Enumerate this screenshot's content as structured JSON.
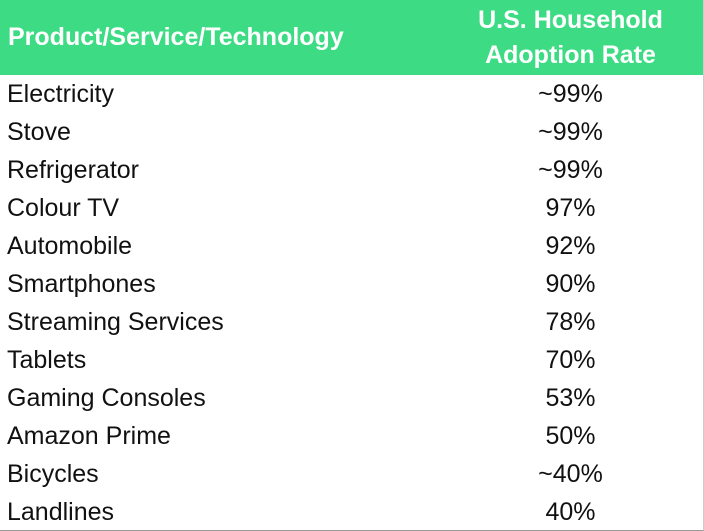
{
  "table": {
    "header": [
      "Product/Service/Technology",
      "U.S. Household\nAdoption Rate"
    ],
    "rows": [
      [
        "Electricity",
        "~99%"
      ],
      [
        "Stove",
        "~99%"
      ],
      [
        "Refrigerator",
        "~99%"
      ],
      [
        "Colour TV",
        "97%"
      ],
      [
        "Automobile",
        "92%"
      ],
      [
        "Smartphones",
        "90%"
      ],
      [
        "Streaming Services",
        "78%"
      ],
      [
        "Tablets",
        "70%"
      ],
      [
        "Gaming Consoles",
        "53%"
      ],
      [
        "Amazon Prime",
        "50%"
      ],
      [
        "Bicycles",
        "~40%"
      ],
      [
        "Landlines",
        "40%"
      ]
    ]
  }
}
